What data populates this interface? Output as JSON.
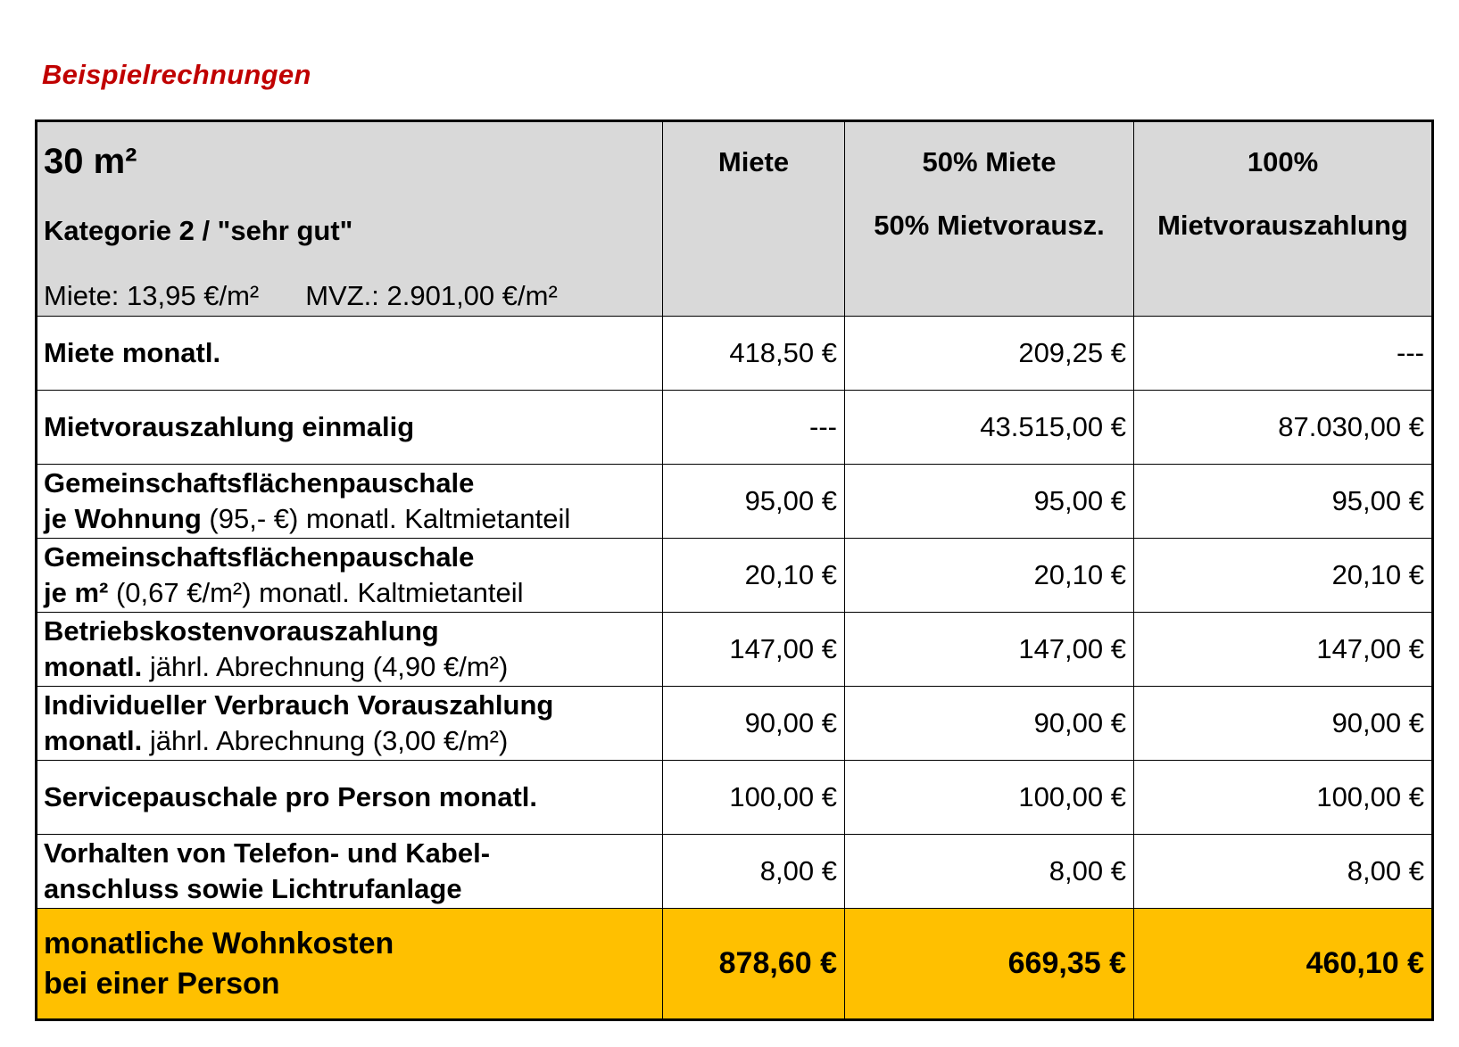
{
  "title": "Beispielrechnungen",
  "header": {
    "size": "30 m²",
    "category": "Kategorie 2 / \"sehr gut\"",
    "rent_info": "Miete: 13,95 €/m²",
    "mvz_info": "MVZ.: 2.901,00 €/m²",
    "col1": "Miete",
    "col2_line1": "50% Miete",
    "col2_line2": "50% Mietvorausz.",
    "col3_line1": "100%",
    "col3_line2": "Mietvorauszahlung"
  },
  "rows": [
    {
      "label_bold": "Miete monatl.",
      "label_extra": "",
      "v1": "418,50 €",
      "v2": "209,25 €",
      "v3": "---"
    },
    {
      "label_bold": "Mietvorauszahlung einmalig",
      "label_extra": "",
      "v1": "---",
      "v2": "43.515,00 €",
      "v3": "87.030,00 €"
    },
    {
      "label_bold": "Gemeinschaftsflächenpauschale",
      "label2_bold": "je Wohnung",
      "label2_rest": " (95,- €) monatl. Kaltmietanteil",
      "v1": "95,00 €",
      "v2": "95,00 €",
      "v3": "95,00 €"
    },
    {
      "label_bold": "Gemeinschaftsflächenpauschale",
      "label2_bold": "je m²",
      "label2_rest": " (0,67 €/m²) monatl. Kaltmietanteil",
      "v1": "20,10 €",
      "v2": "20,10 €",
      "v3": "20,10 €"
    },
    {
      "label_bold": "Betriebskostenvorauszahlung",
      "label2_bold": "monatl.",
      "label2_rest": " jährl. Abrechnung (4,90 €/m²)",
      "v1": "147,00 €",
      "v2": "147,00 €",
      "v3": "147,00 €"
    },
    {
      "label_bold": "Individueller Verbrauch Vorauszahlung",
      "label2_bold": "monatl.",
      "label2_rest": " jährl. Abrechnung (3,00 €/m²)",
      "v1": "90,00 €",
      "v2": "90,00 €",
      "v3": "90,00 €"
    },
    {
      "label_bold": "Servicepauschale pro Person monatl.",
      "label_extra": "",
      "v1": "100,00 €",
      "v2": "100,00 €",
      "v3": "100,00 €"
    },
    {
      "label_bold": "Vorhalten von Telefon- und Kabel-",
      "label2_bold": "anschluss sowie Lichtrufanlage",
      "label2_rest": "",
      "v1": "8,00 €",
      "v2": "8,00 €",
      "v3": "8,00 €"
    }
  ],
  "total": {
    "label_line1": "monatliche Wohnkosten",
    "label_line2": "bei einer Person",
    "v1": "878,60 €",
    "v2": "669,35 €",
    "v3": "460,10 €"
  },
  "colors": {
    "title": "#c00000",
    "header_bg": "#d9d9d9",
    "total_bg": "#ffc000"
  }
}
